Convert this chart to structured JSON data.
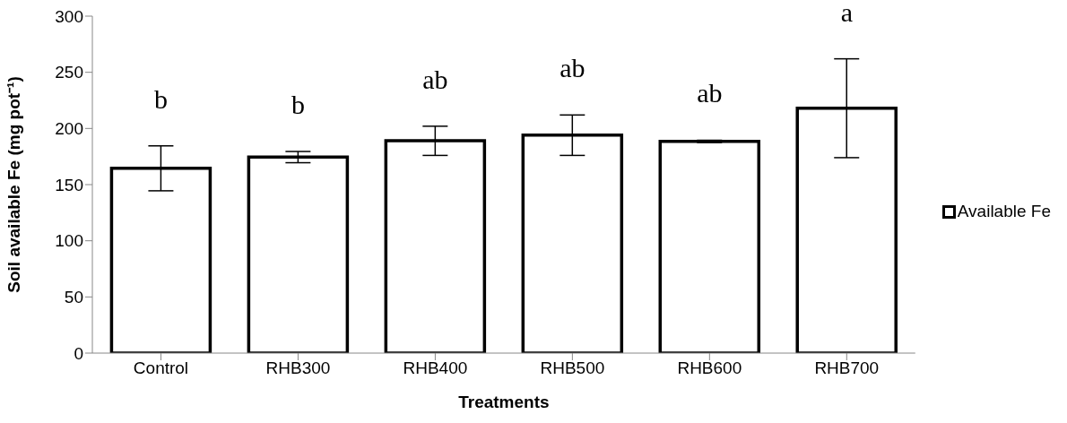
{
  "chart_data": {
    "type": "bar",
    "categories": [
      "Control",
      "RHB300",
      "RHB400",
      "RHB500",
      "RHB600",
      "RHB700"
    ],
    "series": [
      {
        "name": "Available Fe",
        "color": "#ffffff",
        "values": [
          164.5,
          174.5,
          189,
          194,
          188.5,
          218
        ],
        "errors": [
          20,
          5,
          13,
          18,
          1,
          44
        ]
      }
    ],
    "xlabel": "Treatments",
    "ylabel": "Soil available Fe (mg pot⁻¹)",
    "ylim": [
      0,
      300
    ],
    "yticks": [
      0,
      50,
      100,
      150,
      200,
      250,
      300
    ],
    "legend": "right",
    "annotations": [
      "b",
      "b",
      "ab",
      "ab",
      "ab",
      "a"
    ]
  }
}
